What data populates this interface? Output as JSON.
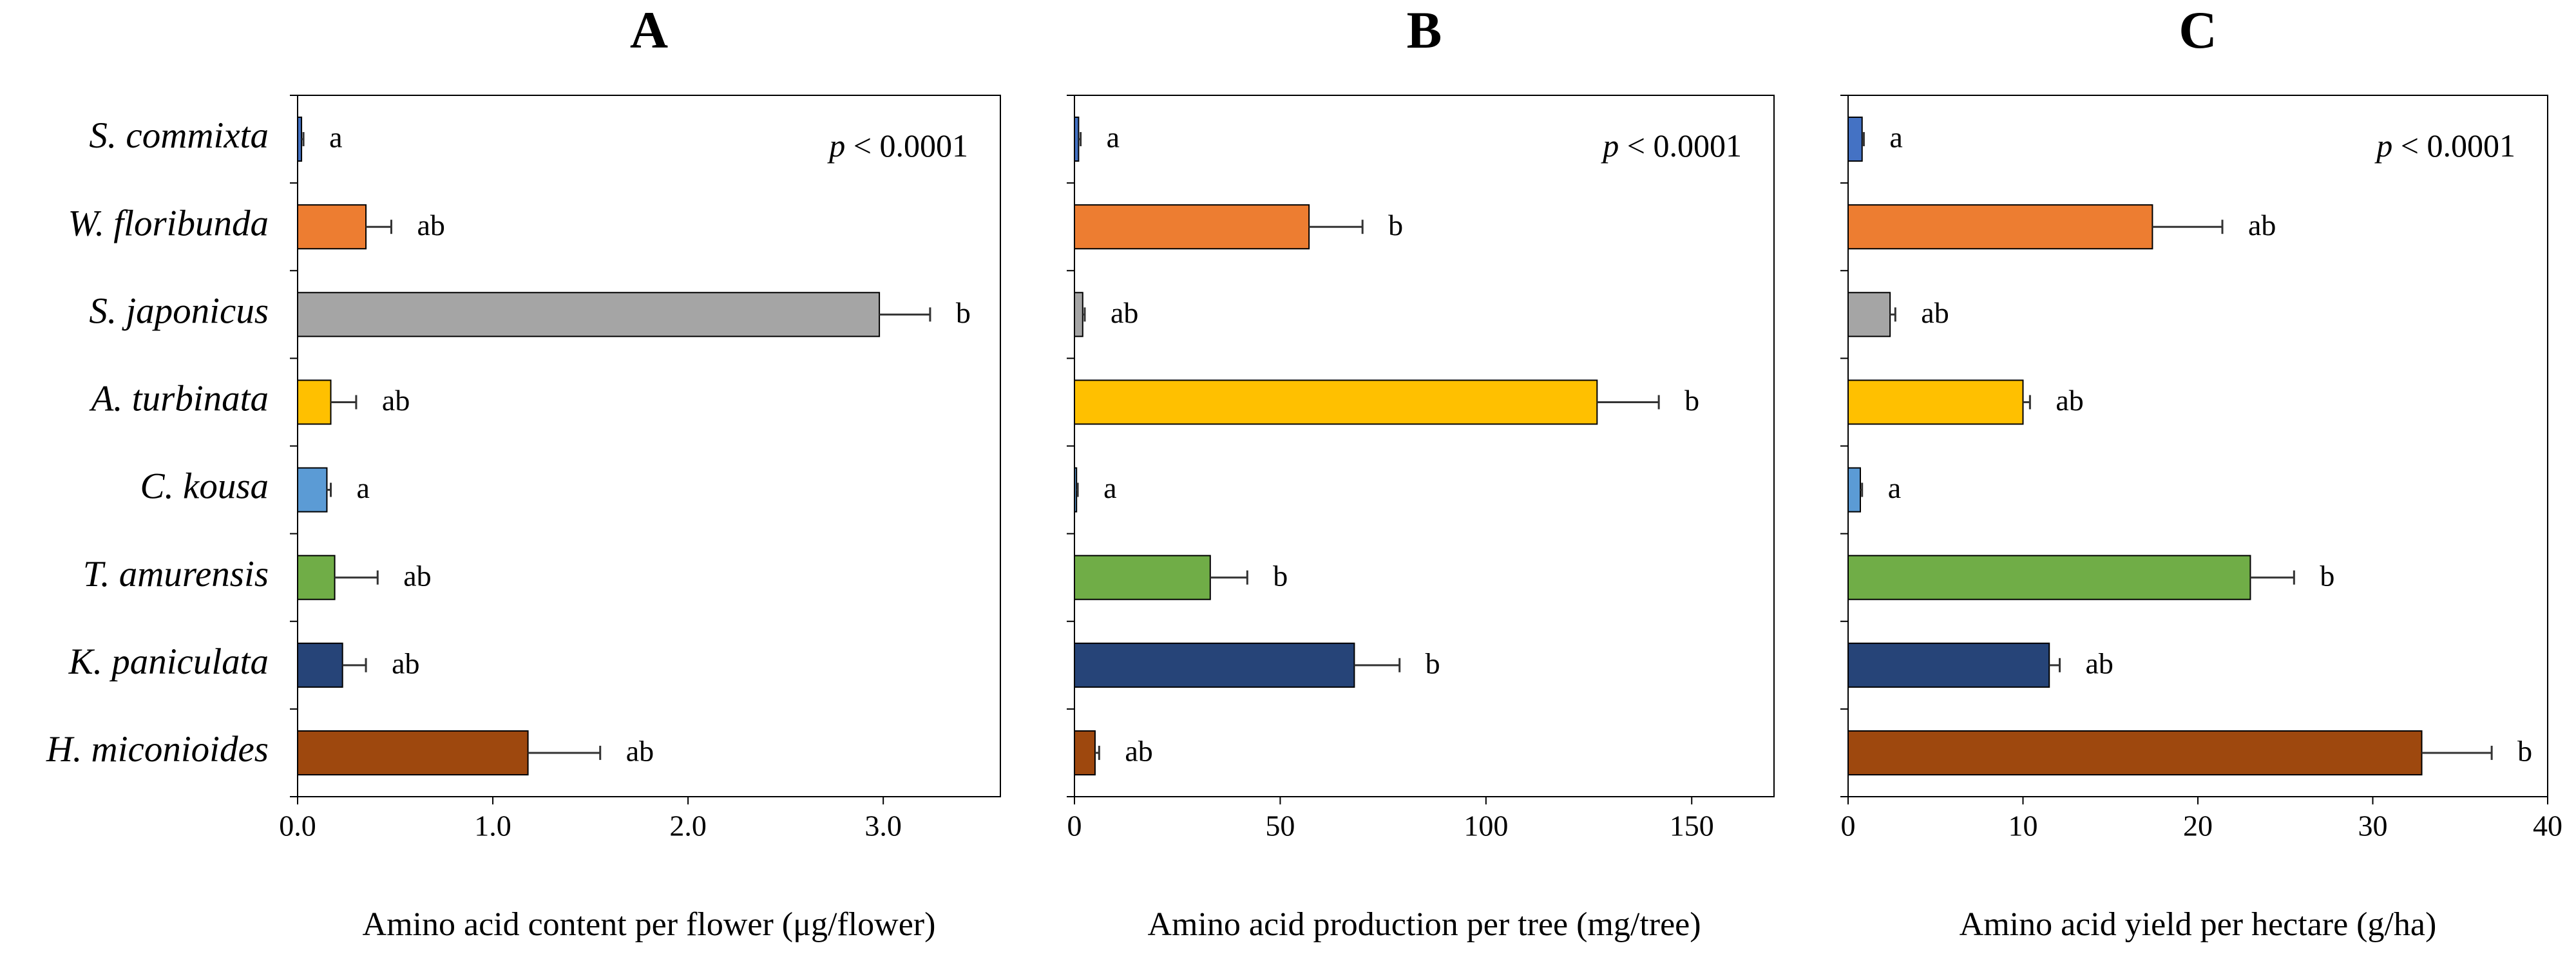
{
  "chart_data": [
    {
      "type": "bar",
      "orientation": "horizontal",
      "title": "A",
      "xlabel": "Amino acid content per flower (μg/flower)",
      "categories": [
        "S. commixta",
        "W. floribunda",
        "S. japonicus",
        "A. turbinata",
        "C. kousa",
        "T. amurensis",
        "K. paniculata",
        "H. miconioides"
      ],
      "colors": [
        "#4472c4",
        "#ed7d31",
        "#a5a5a5",
        "#ffc000",
        "#5b9bd5",
        "#70ad47",
        "#264478",
        "#9e480e"
      ],
      "values": [
        0.02,
        0.35,
        2.98,
        0.17,
        0.15,
        0.19,
        0.23,
        1.18
      ],
      "errors": [
        0.01,
        0.13,
        0.26,
        0.13,
        0.02,
        0.22,
        0.12,
        0.37
      ],
      "letters": [
        "a",
        "ab",
        "b",
        "ab",
        "a",
        "ab",
        "ab",
        "ab"
      ],
      "p_symbol": "p",
      "p_value": "< 0.0001",
      "xlim": [
        0,
        3.6
      ],
      "xticks": [
        {
          "value": 0,
          "label": "0.0"
        },
        {
          "value": 1,
          "label": "1.0"
        },
        {
          "value": 2,
          "label": "2.0"
        },
        {
          "value": 3,
          "label": "3.0"
        }
      ]
    },
    {
      "type": "bar",
      "orientation": "horizontal",
      "title": "B",
      "xlabel": "Amino acid production per tree (mg/tree)",
      "colors": [
        "#4472c4",
        "#ed7d31",
        "#a5a5a5",
        "#ffc000",
        "#5b9bd5",
        "#70ad47",
        "#264478",
        "#9e480e"
      ],
      "values": [
        1,
        57,
        2,
        127,
        0.5,
        33,
        68,
        5
      ],
      "errors": [
        0.5,
        13,
        0.5,
        15,
        0.3,
        9,
        11,
        1
      ],
      "letters": [
        "a",
        "b",
        "ab",
        "b",
        "a",
        "b",
        "b",
        "ab"
      ],
      "p_symbol": "p",
      "p_value": "< 0.0001",
      "xlim": [
        0,
        170
      ],
      "xticks": [
        0,
        50,
        100,
        150
      ]
    },
    {
      "type": "bar",
      "orientation": "horizontal",
      "title": "C",
      "xlabel": "Amino acid yield per hectare (g/ha)",
      "colors": [
        "#4472c4",
        "#ed7d31",
        "#a5a5a5",
        "#ffc000",
        "#5b9bd5",
        "#70ad47",
        "#264478",
        "#9e480e"
      ],
      "values": [
        0.8,
        17.4,
        2.4,
        10,
        0.7,
        23,
        11.5,
        32.8
      ],
      "errors": [
        0.1,
        4,
        0.3,
        0.4,
        0.1,
        2.5,
        0.6,
        4
      ],
      "letters": [
        "a",
        "ab",
        "ab",
        "ab",
        "a",
        "b",
        "ab",
        "b"
      ],
      "p_symbol": "p",
      "p_value": "< 0.0001",
      "xlim": [
        0,
        40
      ],
      "xticks": [
        0,
        10,
        20,
        30,
        40
      ]
    }
  ]
}
